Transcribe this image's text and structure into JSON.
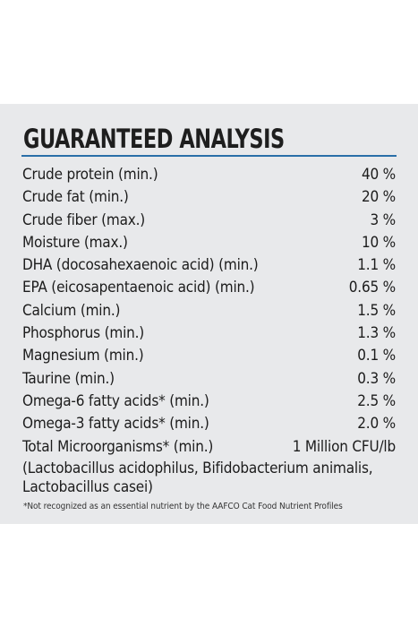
{
  "heading": "GUARANTEED ANALYSIS",
  "colors": {
    "panel": "#e8e9eb",
    "rule": "#2a6fa8",
    "text": "#1c1c1c"
  },
  "rows": [
    {
      "label": "Crude protein (min.)",
      "value": "40 %"
    },
    {
      "label": "Crude fat (min.)",
      "value": "20 %"
    },
    {
      "label": "Crude fiber (max.)",
      "value": "3 %"
    },
    {
      "label": "Moisture (max.)",
      "value": "10 %"
    },
    {
      "label": "DHA (docosahexaenoic acid) (min.)",
      "value": "1.1 %"
    },
    {
      "label": "EPA (eicosapentaenoic acid) (min.)",
      "value": "0.65 %"
    },
    {
      "label": "Calcium (min.)",
      "value": "1.5 %"
    },
    {
      "label": "Phosphorus (min.)",
      "value": "1.3 %"
    },
    {
      "label": "Magnesium (min.)",
      "value": "0.1 %"
    },
    {
      "label": "Taurine (min.)",
      "value": "0.3 %"
    },
    {
      "label": "Omega-6 fatty acids* (min.)",
      "value": "2.5 %"
    },
    {
      "label": "Omega-3 fatty acids* (min.)",
      "value": "2.0 %"
    },
    {
      "label": "Total Microorganisms* (min.)",
      "value": "1 Million CFU/lb"
    }
  ],
  "microorganisms_note": "(Lactobacillus acidophilus, Bifidobacterium animalis, Lactobacillus casei)",
  "footnote": "*Not recognized as an essential nutrient by the AAFCO Cat Food Nutrient Profiles"
}
